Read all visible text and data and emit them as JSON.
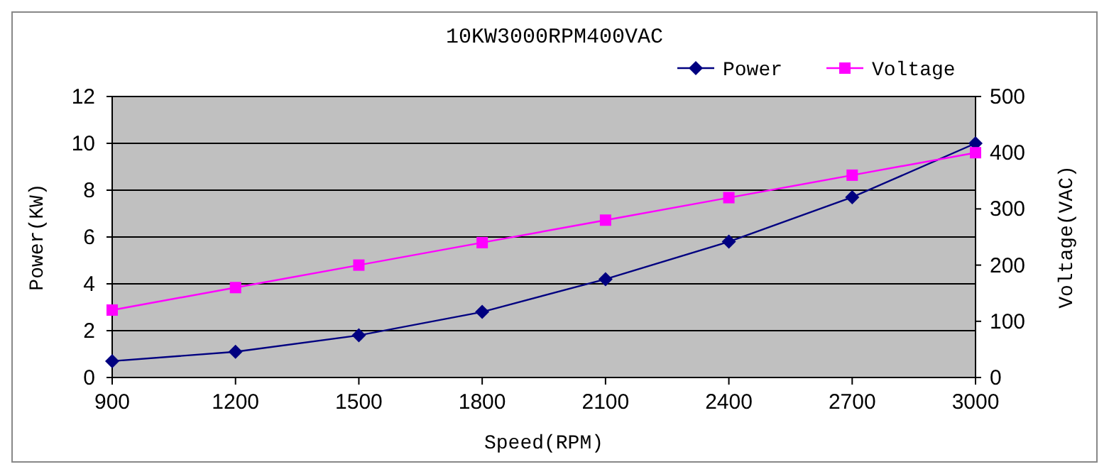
{
  "chart_data": {
    "type": "line",
    "title": "10KW3000RPM400VAC",
    "xlabel": "Speed(RPM)",
    "ylabel": "Power(KW)",
    "y2label": "Voltage(VAC)",
    "x": [
      900,
      1200,
      1500,
      1800,
      2100,
      2400,
      2700,
      3000
    ],
    "xlim": [
      900,
      3000
    ],
    "xticks": [
      900,
      1200,
      1500,
      1800,
      2100,
      2400,
      2700,
      3000
    ],
    "ylim": [
      0,
      12
    ],
    "yticks": [
      0,
      2,
      4,
      6,
      8,
      10,
      12
    ],
    "y2lim": [
      0,
      500
    ],
    "y2ticks": [
      0,
      100,
      200,
      300,
      400,
      500
    ],
    "grid": "y",
    "legend": "top right",
    "series": [
      {
        "name": "Power",
        "color": "#000080",
        "marker": "diamond",
        "values": [
          0.7,
          1.1,
          1.8,
          2.8,
          4.2,
          5.8,
          7.7,
          10.0
        ]
      },
      {
        "name": "Voltage",
        "color": "#ff00ff",
        "marker": "square",
        "axis": "y2",
        "values": [
          120,
          160,
          200,
          240,
          280,
          320,
          360,
          400
        ]
      }
    ]
  }
}
